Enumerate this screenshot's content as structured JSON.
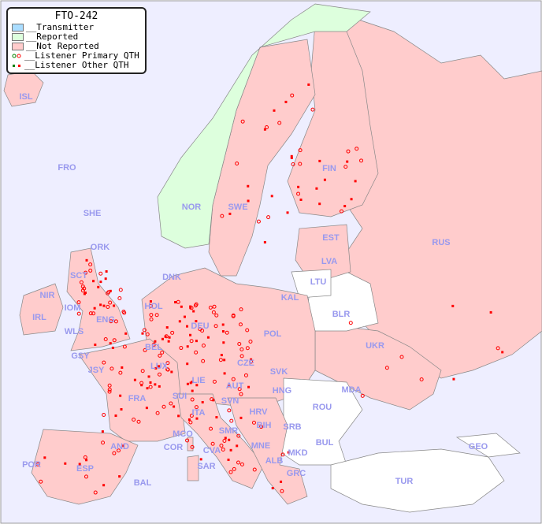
{
  "title": "FTO-242",
  "legend": [
    {
      "label": "__Transmitter",
      "color": "#aaddff"
    },
    {
      "label": "__Reported",
      "color": "#ddffdd"
    },
    {
      "label": "__Not Reported",
      "color": "#ffcccc"
    },
    {
      "label": "__Listener Primary QTH",
      "marker": "circle",
      "color": "#ff0000"
    },
    {
      "label": "__Listener Other QTH",
      "marker": "square",
      "color": "#ff0000"
    }
  ],
  "colors": {
    "sea": "#eeeeff",
    "not_reported": "#ffcccc",
    "reported": "#ddffdd",
    "no_data": "#ffffff",
    "listener": "#ff0000",
    "label": "#9999ee"
  },
  "countries": [
    "ISL",
    "FRO",
    "SHE",
    "ORK",
    "NOR",
    "SWE",
    "FIN",
    "EST",
    "LVA",
    "LTU",
    "RUS",
    "BLR",
    "KAL",
    "DNK",
    "HOL",
    "DEU",
    "POL",
    "NIR",
    "SCT",
    "IRL",
    "WLS",
    "IOM",
    "ENG",
    "BEL",
    "LUX",
    "GSY",
    "JSY",
    "FRA",
    "SUI",
    "LIE",
    "AUT",
    "CZE",
    "SVK",
    "HNG",
    "UKR",
    "MDA",
    "ROU",
    "SVN",
    "HRV",
    "BIH",
    "SRB",
    "BUL",
    "MNE",
    "MKD",
    "ALB",
    "GRC",
    "TUR",
    "GEO",
    "ITA",
    "SMR",
    "MCO",
    "COR",
    "CVA",
    "SAR",
    "AND",
    "POR",
    "ESP",
    "BAL"
  ]
}
